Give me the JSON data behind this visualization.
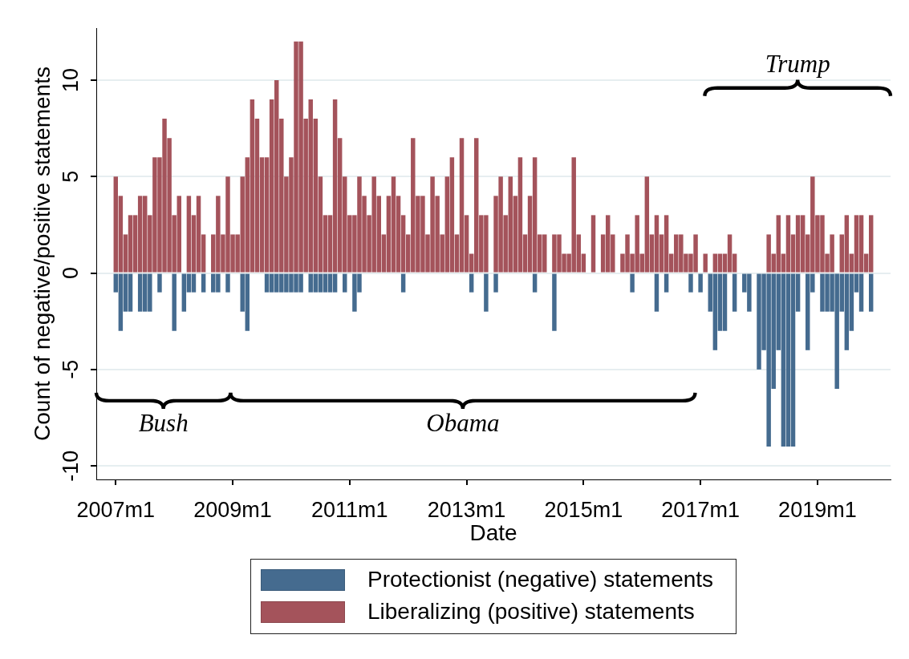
{
  "chart_data": {
    "type": "bar",
    "xlabel": "Date",
    "ylabel": "Count of negative/positive statements",
    "x": [
      "2007-01",
      "2007-02",
      "2007-03",
      "2007-04",
      "2007-05",
      "2007-06",
      "2007-07",
      "2007-08",
      "2007-09",
      "2007-10",
      "2007-11",
      "2007-12",
      "2008-01",
      "2008-02",
      "2008-03",
      "2008-04",
      "2008-05",
      "2008-06",
      "2008-07",
      "2008-08",
      "2008-09",
      "2008-10",
      "2008-11",
      "2008-12",
      "2009-01",
      "2009-02",
      "2009-03",
      "2009-04",
      "2009-05",
      "2009-06",
      "2009-07",
      "2009-08",
      "2009-09",
      "2009-10",
      "2009-11",
      "2009-12",
      "2010-01",
      "2010-02",
      "2010-03",
      "2010-04",
      "2010-05",
      "2010-06",
      "2010-07",
      "2010-08",
      "2010-09",
      "2010-10",
      "2010-11",
      "2010-12",
      "2011-01",
      "2011-02",
      "2011-03",
      "2011-04",
      "2011-05",
      "2011-06",
      "2011-07",
      "2011-08",
      "2011-09",
      "2011-10",
      "2011-11",
      "2011-12",
      "2012-01",
      "2012-02",
      "2012-03",
      "2012-04",
      "2012-05",
      "2012-06",
      "2012-07",
      "2012-08",
      "2012-09",
      "2012-10",
      "2012-11",
      "2012-12",
      "2013-01",
      "2013-02",
      "2013-03",
      "2013-04",
      "2013-05",
      "2013-06",
      "2013-07",
      "2013-08",
      "2013-09",
      "2013-10",
      "2013-11",
      "2013-12",
      "2014-01",
      "2014-02",
      "2014-03",
      "2014-04",
      "2014-05",
      "2014-06",
      "2014-07",
      "2014-08",
      "2014-09",
      "2014-10",
      "2014-11",
      "2014-12",
      "2015-01",
      "2015-02",
      "2015-03",
      "2015-04",
      "2015-05",
      "2015-06",
      "2015-07",
      "2015-08",
      "2015-09",
      "2015-10",
      "2015-11",
      "2015-12",
      "2016-01",
      "2016-02",
      "2016-03",
      "2016-04",
      "2016-05",
      "2016-06",
      "2016-07",
      "2016-08",
      "2016-09",
      "2016-10",
      "2016-11",
      "2016-12",
      "2017-01",
      "2017-02",
      "2017-03",
      "2017-04",
      "2017-05",
      "2017-06",
      "2017-07",
      "2017-08",
      "2017-09",
      "2017-10",
      "2017-11",
      "2017-12",
      "2018-01",
      "2018-02",
      "2018-03",
      "2018-04",
      "2018-05",
      "2018-06",
      "2018-07",
      "2018-08",
      "2018-09",
      "2018-10",
      "2018-11",
      "2018-12",
      "2019-01",
      "2019-02",
      "2019-03",
      "2019-04",
      "2019-05",
      "2019-06",
      "2019-07",
      "2019-08",
      "2019-09",
      "2019-10",
      "2019-11",
      "2019-12"
    ],
    "series": [
      {
        "name": "Protectionist (negative) statements",
        "color": "#456b8f",
        "values": [
          -1,
          -3,
          -2,
          -2,
          0,
          -2,
          -2,
          -2,
          0,
          -1,
          0,
          0,
          -3,
          0,
          -2,
          -1,
          -1,
          0,
          -1,
          0,
          -1,
          -1,
          0,
          -1,
          0,
          0,
          -2,
          -3,
          0,
          0,
          0,
          -1,
          -1,
          -1,
          -1,
          -1,
          -1,
          -1,
          -1,
          0,
          -1,
          -1,
          -1,
          -1,
          -1,
          -1,
          0,
          -1,
          0,
          -2,
          -1,
          0,
          0,
          0,
          0,
          0,
          0,
          0,
          0,
          -1,
          0,
          0,
          0,
          0,
          0,
          0,
          0,
          0,
          0,
          0,
          0,
          0,
          0,
          -1,
          0,
          0,
          -2,
          0,
          -1,
          0,
          0,
          0,
          0,
          0,
          0,
          0,
          -1,
          0,
          0,
          0,
          -3,
          0,
          0,
          0,
          0,
          0,
          0,
          0,
          0,
          0,
          0,
          0,
          0,
          0,
          0,
          0,
          -1,
          0,
          0,
          0,
          0,
          -2,
          0,
          -1,
          0,
          0,
          0,
          0,
          -1,
          0,
          -1,
          0,
          -2,
          -4,
          -3,
          -3,
          0,
          -2,
          0,
          -1,
          -2,
          0,
          -5,
          -4,
          -9,
          -6,
          -4,
          -9,
          -9,
          -9,
          -2,
          0,
          -4,
          -1,
          0,
          -2,
          -2,
          -2,
          -6,
          -2,
          -4,
          -3,
          -1,
          -2,
          0,
          -2
        ]
      },
      {
        "name": "Liberalizing (positive) statements",
        "color": "#a4535b",
        "values": [
          5,
          4,
          2,
          3,
          3,
          4,
          4,
          3,
          6,
          6,
          8,
          7,
          3,
          4,
          0,
          4,
          3,
          4,
          2,
          0,
          2,
          4,
          2,
          5,
          2,
          2,
          5,
          6,
          9,
          8,
          6,
          6,
          9,
          10,
          8,
          5,
          6,
          12,
          12,
          8,
          9,
          8,
          5,
          3,
          3,
          9,
          7,
          5,
          3,
          3,
          5,
          4,
          3,
          5,
          4,
          2,
          4,
          5,
          4,
          3,
          2,
          7,
          4,
          4,
          2,
          5,
          4,
          2,
          5,
          6,
          2,
          7,
          3,
          1,
          7,
          3,
          3,
          0,
          4,
          5,
          3,
          5,
          4,
          6,
          2,
          4,
          6,
          2,
          2,
          0,
          2,
          2,
          1,
          1,
          6,
          2,
          1,
          0,
          3,
          0,
          2,
          3,
          2,
          0,
          1,
          2,
          1,
          3,
          1,
          5,
          2,
          3,
          2,
          3,
          1,
          2,
          2,
          1,
          1,
          2,
          0,
          1,
          0,
          1,
          1,
          1,
          2,
          1,
          0,
          0,
          0,
          0,
          0,
          0,
          2,
          1,
          3,
          1,
          3,
          2,
          3,
          3,
          2,
          5,
          3,
          3,
          1,
          2,
          0,
          2,
          3,
          1,
          3,
          3,
          1,
          3
        ]
      }
    ],
    "stacked": true,
    "xlim": [
      "2006-09",
      "2020-04"
    ],
    "xticks": [
      {
        "value": "2007-01",
        "label": "2007m1"
      },
      {
        "value": "2009-01",
        "label": "2009m1"
      },
      {
        "value": "2011-01",
        "label": "2011m1"
      },
      {
        "value": "2013-01",
        "label": "2013m1"
      },
      {
        "value": "2015-01",
        "label": "2015m1"
      },
      {
        "value": "2017-01",
        "label": "2017m1"
      },
      {
        "value": "2019-01",
        "label": "2019m1"
      }
    ],
    "ylim": [
      -10.7,
      12.7
    ],
    "yticks": [
      -10,
      -5,
      0,
      5,
      10
    ],
    "grid": "y",
    "legend": "bottom",
    "annotations": [
      "Bush",
      "Obama",
      "Trump"
    ]
  }
}
